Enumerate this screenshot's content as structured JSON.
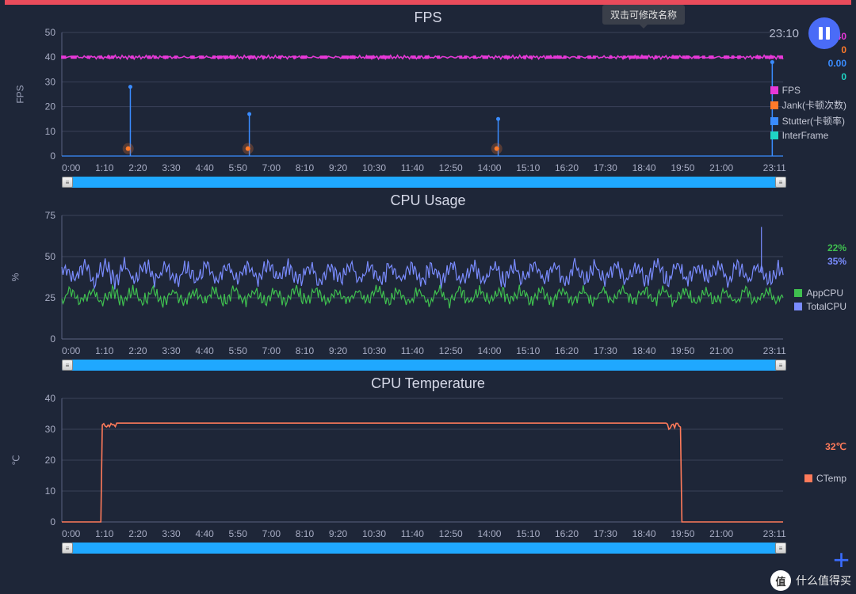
{
  "colors": {
    "bg": "#1e2638",
    "topbar": "#e94b5b",
    "grid": "#3a4158",
    "axis": "#5a6280",
    "slider": "#1fa8ff",
    "pause_btn": "#4a6cf7",
    "fps_line": "#e838d8",
    "jank": "#ff7a2a",
    "stutter": "#3a8cff",
    "interframe": "#1fd4c4",
    "appcpu": "#3fbf4f",
    "totalcpu": "#7a8cff",
    "ctemp": "#ff7a5a"
  },
  "tooltip_text": "双击可修改名称",
  "top_timestamp": "23:10",
  "xticks": [
    "0:00",
    "1:10",
    "2:20",
    "3:30",
    "4:40",
    "5:50",
    "7:00",
    "8:10",
    "9:20",
    "10:30",
    "11:40",
    "12:50",
    "14:00",
    "15:10",
    "16:20",
    "17:30",
    "18:40",
    "19:50",
    "21:00",
    "",
    "23:11"
  ],
  "fps_panel": {
    "title": "FPS",
    "yaxis_label": "FPS",
    "ylim": [
      0,
      50
    ],
    "ytick_step": 10,
    "fps_value": 40,
    "current_vals": {
      "fps": "40",
      "jank": "0",
      "stutter": "0.00",
      "interframe": "0"
    },
    "legend": [
      {
        "label": "FPS",
        "color": "#e838d8"
      },
      {
        "label": "Jank(卡顿次数)",
        "color": "#ff7a2a"
      },
      {
        "label": "Stutter(卡顿率)",
        "color": "#3a8cff"
      },
      {
        "label": "InterFrame",
        "color": "#1fd4c4"
      }
    ],
    "stutter_spikes_x": [
      0.095,
      0.26,
      0.605,
      0.985
    ],
    "stutter_spike_heights": [
      28,
      17,
      15,
      38
    ],
    "jank_dots_x": [
      0.092,
      0.258,
      0.603
    ]
  },
  "cpu_panel": {
    "title": "CPU Usage",
    "yaxis_label": "%",
    "ylim": [
      0,
      75
    ],
    "ytick_step": 25,
    "current_vals": {
      "app": "22%",
      "total": "35%"
    },
    "legend": [
      {
        "label": "AppCPU",
        "color": "#3fbf4f"
      },
      {
        "label": "TotalCPU",
        "color": "#7a8cff"
      }
    ],
    "app_baseline": 26,
    "app_jitter": 6,
    "total_baseline": 40,
    "total_jitter": 8
  },
  "temp_panel": {
    "title": "CPU Temperature",
    "yaxis_label": "℃",
    "ylim": [
      0,
      40
    ],
    "ytick_step": 10,
    "current_val": "32℃",
    "legend": [
      {
        "label": "CTemp",
        "color": "#ff7a5a"
      }
    ],
    "temp_value": 32,
    "temp_zero_ranges": [
      [
        0,
        0.06
      ],
      [
        0.85,
        1.0
      ]
    ],
    "temp_dip_x": [
      0.065,
      0.848
    ]
  },
  "watermark_text": "什么值得买",
  "watermark_badge": "值"
}
